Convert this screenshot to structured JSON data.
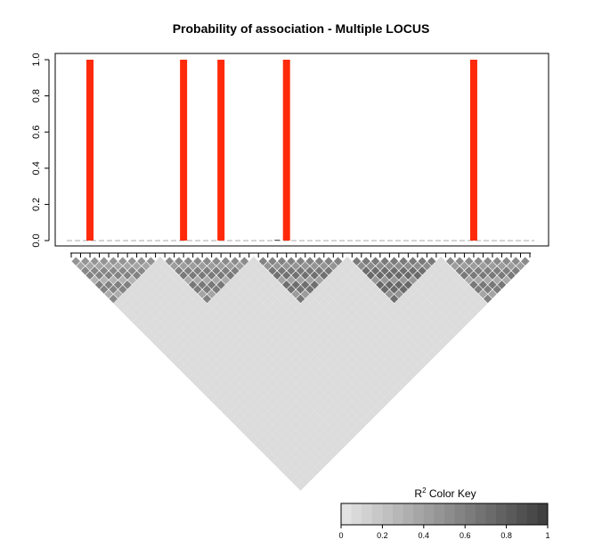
{
  "chart_data": {
    "type": "bar",
    "title": "Probability of association - Multiple LOCUS",
    "xlabel": "",
    "ylabel": "",
    "ylim": [
      0,
      1.0
    ],
    "yticks": [
      "0.0",
      "0.2",
      "0.4",
      "0.6",
      "0.8",
      "1.0"
    ],
    "n_snps": 50,
    "blocks": [
      {
        "start": 0,
        "size": 10
      },
      {
        "start": 10,
        "size": 10
      },
      {
        "start": 20,
        "size": 10
      },
      {
        "start": 30,
        "size": 10
      },
      {
        "start": 40,
        "size": 10
      }
    ],
    "values": [
      0,
      0,
      1.0,
      0,
      0,
      0,
      0,
      0,
      0,
      0,
      0,
      0,
      1.0,
      0,
      0,
      0,
      1.0,
      0,
      0,
      0,
      0,
      0,
      0.005,
      1.0,
      0,
      0,
      0,
      0,
      0,
      0,
      0,
      0,
      0,
      0,
      0,
      0,
      0,
      0,
      0,
      0,
      0,
      0,
      0,
      1.0,
      0,
      0,
      0,
      0,
      0,
      0
    ],
    "bar_color": "#ff2a0a",
    "ld_heatmap": {
      "block_r2": [
        0.45,
        0.5,
        0.55,
        0.6,
        0.5
      ],
      "between_r2": 0.06
    },
    "color_key": {
      "title_main": "R",
      "title_sup": "2",
      "title_rest": " Color Key",
      "ticks": [
        "0",
        "0.2",
        "0.4",
        "0.6",
        "0.8",
        "1"
      ],
      "low_color": "#e6e6e6",
      "high_color": "#3c3c3c"
    }
  }
}
